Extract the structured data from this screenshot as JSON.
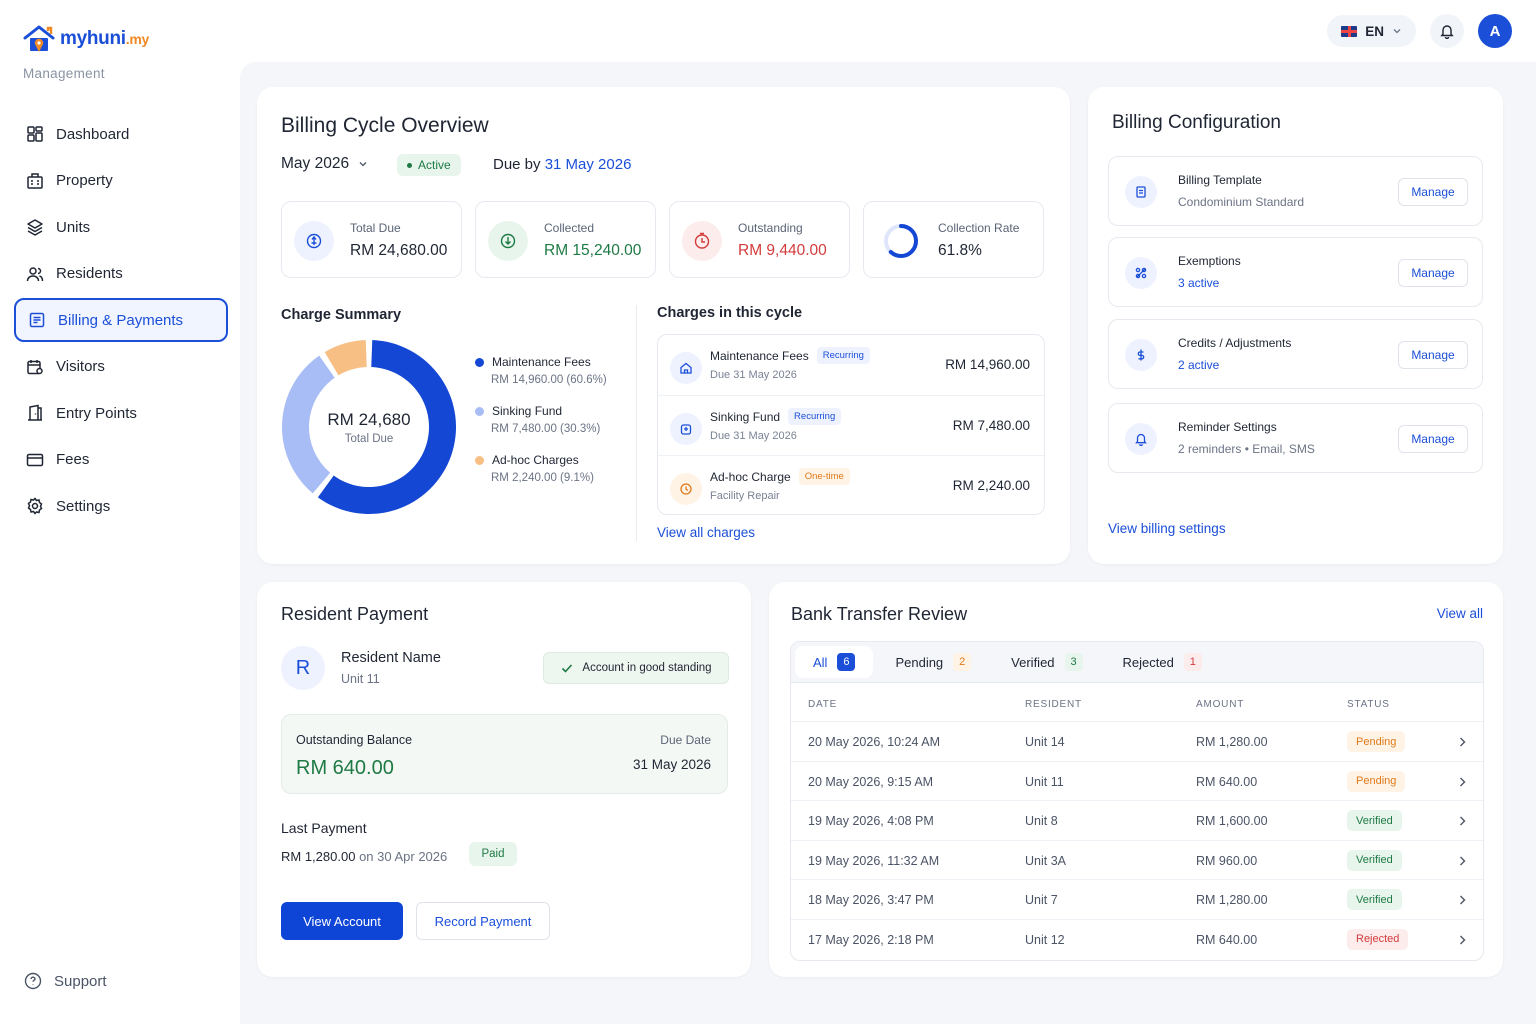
{
  "brand": {
    "name_main": "myhuni",
    "name_tld": ".my",
    "subtitle": "Management"
  },
  "sidebar": {
    "items": [
      {
        "label": "Dashboard",
        "icon": "grid-icon"
      },
      {
        "label": "Property",
        "icon": "building-icon"
      },
      {
        "label": "Units",
        "icon": "layers-icon"
      },
      {
        "label": "Residents",
        "icon": "users-icon"
      },
      {
        "label": "Billing & Payments",
        "icon": "receipt-icon",
        "active": true
      },
      {
        "label": "Visitors",
        "icon": "calendar-user-icon"
      },
      {
        "label": "Entry Points",
        "icon": "door-icon"
      },
      {
        "label": "Fees",
        "icon": "card-icon"
      },
      {
        "label": "Settings",
        "icon": "gear-icon"
      }
    ],
    "support": "Support"
  },
  "topbar": {
    "language": "EN",
    "avatar_initial": "A"
  },
  "overview": {
    "title": "Billing Cycle Overview",
    "period": "May 2026",
    "status": "Active",
    "due_prefix": "Due by",
    "due_date": "31 May 2026",
    "stats": [
      {
        "label": "Total Due",
        "value": "RM 24,680.00",
        "color": "#1f2533"
      },
      {
        "label": "Collected",
        "value": "RM 15,240.00",
        "color": "#1e7a44"
      },
      {
        "label": "Outstanding",
        "value": "RM 9,440.00",
        "color": "#d33b3b"
      },
      {
        "label": "Collection Rate",
        "value": "61.8%",
        "color": "#1f2533"
      }
    ],
    "charge_summary_title": "Charge Summary",
    "donut": {
      "total": "RM 24,680",
      "caption": "Total Due"
    },
    "legend": [
      {
        "name": "Maintenance Fees",
        "value": "RM 14,960.00 (60.6%)",
        "percent": 60.6,
        "color": "#1447d4"
      },
      {
        "name": "Sinking Fund",
        "value": "RM 7,480.00 (30.3%)",
        "percent": 30.3,
        "color": "#a8bcf5"
      },
      {
        "name": "Ad-hoc Charges",
        "value": "RM 2,240.00 (9.1%)",
        "percent": 9.1,
        "color": "#f8bf84"
      }
    ],
    "charges_title": "Charges in this cycle",
    "charges": [
      {
        "name": "Maintenance Fees",
        "tag": "Recurring",
        "sub": "Due 31 May 2026",
        "amount": "RM 14,960.00"
      },
      {
        "name": "Sinking Fund",
        "tag": "Recurring",
        "sub": "Due 31 May 2026",
        "amount": "RM 7,480.00"
      },
      {
        "name": "Ad-hoc Charge",
        "tag": "One-time",
        "sub": "Facility Repair",
        "amount": "RM 2,240.00"
      }
    ],
    "view_all_charges": "View all charges"
  },
  "config": {
    "title": "Billing Configuration",
    "items": [
      {
        "name": "Billing Template",
        "sub": "Condominium Standard",
        "button": "Manage"
      },
      {
        "name": "Exemptions",
        "sub": "3 active",
        "button": "Manage"
      },
      {
        "name": "Credits / Adjustments",
        "sub": "2 active",
        "button": "Manage"
      },
      {
        "name": "Reminder Settings",
        "sub": "2 reminders • Email, SMS",
        "button": "Manage"
      }
    ],
    "view_settings": "View billing settings"
  },
  "resident": {
    "title": "Resident Payment",
    "initial": "R",
    "name": "Resident Name",
    "unit": "Unit 11",
    "standing": "Account in good standing",
    "balance_label": "Outstanding Balance",
    "balance_value": "RM 640.00",
    "due_label": "Due Date",
    "due_value": "31 May 2026",
    "last_payment_label": "Last Payment",
    "last_amount": "RM 1,280.00",
    "last_on": "on 30 Apr 2026",
    "last_status": "Paid",
    "btn_view": "View Account",
    "btn_record": "Record Payment"
  },
  "bank": {
    "title": "Bank Transfer Review",
    "view_all": "View all",
    "tabs": [
      {
        "label": "All",
        "count": "6"
      },
      {
        "label": "Pending",
        "count": "2"
      },
      {
        "label": "Verified",
        "count": "3"
      },
      {
        "label": "Rejected",
        "count": "1"
      }
    ],
    "columns": [
      "DATE",
      "RESIDENT",
      "AMOUNT",
      "STATUS"
    ],
    "rows": [
      {
        "date": "20 May 2026, 10:24 AM",
        "resident": "Unit 14",
        "amount": "RM 1,280.00",
        "status": "Pending"
      },
      {
        "date": "20 May 2026, 9:15 AM",
        "resident": "Unit 11",
        "amount": "RM 640.00",
        "status": "Pending"
      },
      {
        "date": "19 May 2026, 4:08 PM",
        "resident": "Unit 8",
        "amount": "RM 1,600.00",
        "status": "Verified"
      },
      {
        "date": "19 May 2026, 11:32 AM",
        "resident": "Unit 3A",
        "amount": "RM 960.00",
        "status": "Verified"
      },
      {
        "date": "18 May 2026, 3:47 PM",
        "resident": "Unit 7",
        "amount": "RM 1,280.00",
        "status": "Verified"
      },
      {
        "date": "17 May 2026, 2:18 PM",
        "resident": "Unit 12",
        "amount": "RM 640.00",
        "status": "Rejected"
      }
    ]
  }
}
